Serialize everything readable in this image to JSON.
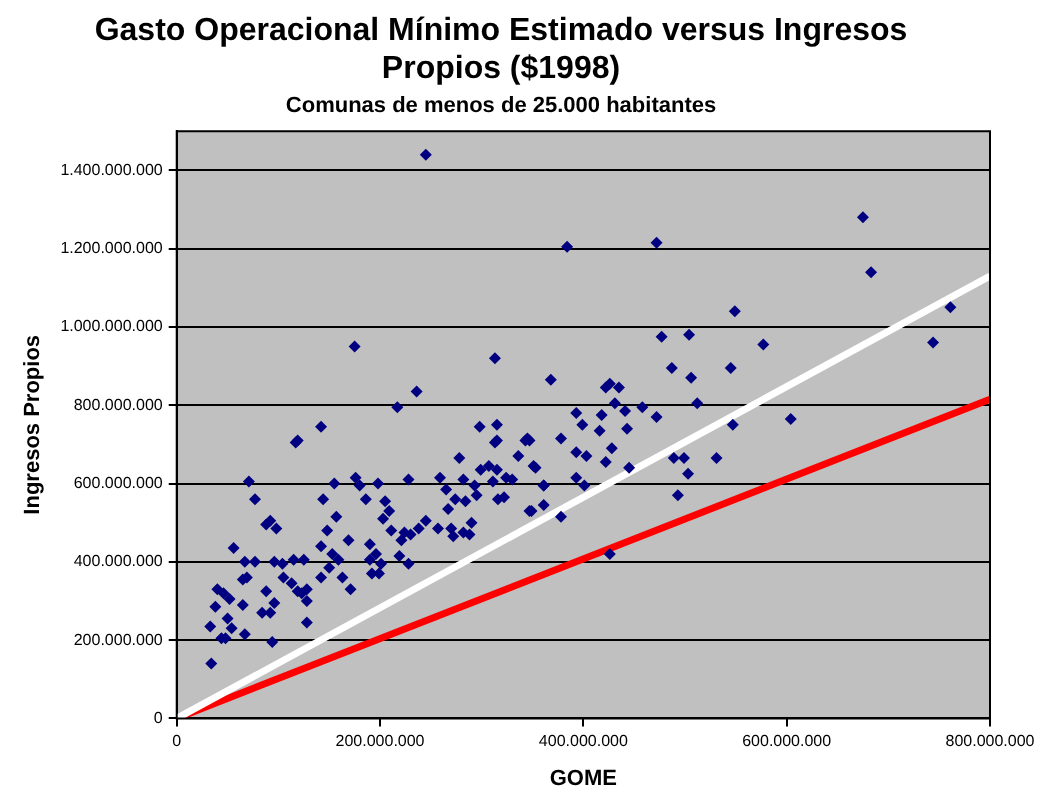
{
  "chart_data": {
    "type": "scatter",
    "title": "Gasto Operacional Mínimo Estimado versus Ingresos Propios ($1998)",
    "subtitle": "Comunas de menos de 25.000 habitantes",
    "xlabel": "GOME",
    "ylabel": "Ingresos Propios",
    "xlim": [
      0,
      800000000
    ],
    "xticks": [
      {
        "value": 0,
        "label": "0"
      },
      {
        "value": 200000000,
        "label": "200.000.000"
      },
      {
        "value": 400000000,
        "label": "400.000.000"
      },
      {
        "value": 600000000,
        "label": "600.000.000"
      },
      {
        "value": 800000000,
        "label": "800.000.000"
      }
    ],
    "ylim": [
      0,
      1500000000
    ],
    "yticks": [
      {
        "value": 0,
        "label": "0"
      },
      {
        "value": 200000000,
        "label": "200.000.000"
      },
      {
        "value": 400000000,
        "label": "400.000.000"
      },
      {
        "value": 600000000,
        "label": "600.000.000"
      },
      {
        "value": 800000000,
        "label": "800.000.000"
      },
      {
        "value": 1000000000,
        "label": "1.000.000.000"
      },
      {
        "value": 1200000000,
        "label": "1.200.000.000"
      },
      {
        "value": 1400000000,
        "label": "1.400.000.000"
      }
    ],
    "grid": "y",
    "legend": false,
    "marker": "diamond",
    "series": [
      {
        "color": "#000080",
        "x": [
          245000000,
          175000000,
          217000000,
          236000000,
          313000000,
          119000000,
          142000000,
          298000000,
          315000000,
          315000000,
          345000000,
          384000000,
          472000000,
          675000000,
          683000000,
          761000000,
          744000000,
          549000000,
          477000000,
          504000000,
          577000000,
          487000000,
          506000000,
          545000000,
          512000000,
          604000000,
          547000000,
          368000000,
          422000000,
          426000000,
          435000000,
          431000000,
          458000000,
          472000000,
          441000000,
          393000000,
          399000000,
          416000000,
          443000000,
          418000000,
          378000000,
          428000000,
          393000000,
          347000000,
          403000000,
          422000000,
          445000000,
          489000000,
          499000000,
          531000000,
          503000000,
          493000000,
          353000000,
          361000000,
          393000000,
          401000000,
          349000000,
          361000000,
          378000000,
          426000000,
          34000000,
          33000000,
          38000000,
          40000000,
          46000000,
          44000000,
          48000000,
          50000000,
          54000000,
          52000000,
          65000000,
          69000000,
          56000000,
          67000000,
          65000000,
          67000000,
          71000000,
          77000000,
          77000000,
          84000000,
          88000000,
          92000000,
          94000000,
          96000000,
          88000000,
          92000000,
          98000000,
          96000000,
          105000000,
          104000000,
          115000000,
          117000000,
          119000000,
          123000000,
          128000000,
          128000000,
          128000000,
          125000000,
          113000000,
          142000000,
          142000000,
          144000000,
          148000000,
          150000000,
          153000000,
          159000000,
          157000000,
          155000000,
          163000000,
          169000000,
          171000000,
          176000000,
          180000000,
          186000000,
          190000000,
          190000000,
          192000000,
          196000000,
          198000000,
          199000000,
          201000000,
          205000000,
          203000000,
          209000000,
          211000000,
          219000000,
          221000000,
          224000000,
          228000000,
          228000000,
          230000000,
          238000000,
          245000000,
          257000000,
          259000000,
          265000000,
          267000000,
          270000000,
          272000000,
          274000000,
          278000000,
          282000000,
          284000000,
          282000000,
          288000000,
          290000000,
          293000000,
          295000000,
          299000000,
          307000000,
          311000000,
          313000000,
          315000000,
          316000000,
          322000000,
          324000000,
          330000000,
          336000000,
          347000000,
          351000000,
          361000000,
          343000000
        ],
        "values": [
          1440000000,
          950000000,
          795000000,
          835000000,
          920000000,
          710000000,
          745000000,
          745000000,
          750000000,
          710000000,
          715000000,
          1205000000,
          1215000000,
          1280000000,
          1140000000,
          1050000000,
          960000000,
          1040000000,
          975000000,
          980000000,
          955000000,
          895000000,
          870000000,
          895000000,
          805000000,
          765000000,
          750000000,
          865000000,
          845000000,
          855000000,
          845000000,
          805000000,
          795000000,
          770000000,
          785000000,
          780000000,
          750000000,
          735000000,
          740000000,
          775000000,
          715000000,
          690000000,
          680000000,
          710000000,
          670000000,
          655000000,
          640000000,
          665000000,
          665000000,
          665000000,
          625000000,
          570000000,
          640000000,
          595000000,
          615000000,
          595000000,
          530000000,
          545000000,
          515000000,
          420000000,
          140000000,
          235000000,
          285000000,
          330000000,
          320000000,
          205000000,
          205000000,
          255000000,
          230000000,
          305000000,
          355000000,
          360000000,
          435000000,
          400000000,
          290000000,
          215000000,
          605000000,
          560000000,
          400000000,
          270000000,
          325000000,
          270000000,
          195000000,
          295000000,
          495000000,
          505000000,
          485000000,
          400000000,
          360000000,
          395000000,
          405000000,
          705000000,
          325000000,
          320000000,
          330000000,
          300000000,
          245000000,
          405000000,
          345000000,
          360000000,
          440000000,
          560000000,
          480000000,
          385000000,
          420000000,
          405000000,
          515000000,
          600000000,
          360000000,
          455000000,
          330000000,
          615000000,
          595000000,
          560000000,
          445000000,
          405000000,
          370000000,
          420000000,
          600000000,
          370000000,
          395000000,
          555000000,
          510000000,
          530000000,
          480000000,
          415000000,
          455000000,
          475000000,
          395000000,
          610000000,
          470000000,
          485000000,
          505000000,
          485000000,
          615000000,
          585000000,
          535000000,
          485000000,
          465000000,
          560000000,
          665000000,
          610000000,
          555000000,
          475000000,
          470000000,
          500000000,
          595000000,
          570000000,
          635000000,
          645000000,
          605000000,
          705000000,
          635000000,
          560000000,
          565000000,
          615000000,
          610000000,
          670000000,
          530000000,
          645000000,
          595000000,
          710000000
        ]
      },
      {
        "type": "line",
        "marker": "none",
        "color": "#ffffff",
        "x": [
          0,
          800000000
        ],
        "values": [
          0,
          1130000000
        ]
      },
      {
        "type": "line",
        "marker": "none",
        "color": "#ff0000",
        "x": [
          0,
          800000000
        ],
        "values": [
          0,
          815000000
        ]
      }
    ]
  }
}
